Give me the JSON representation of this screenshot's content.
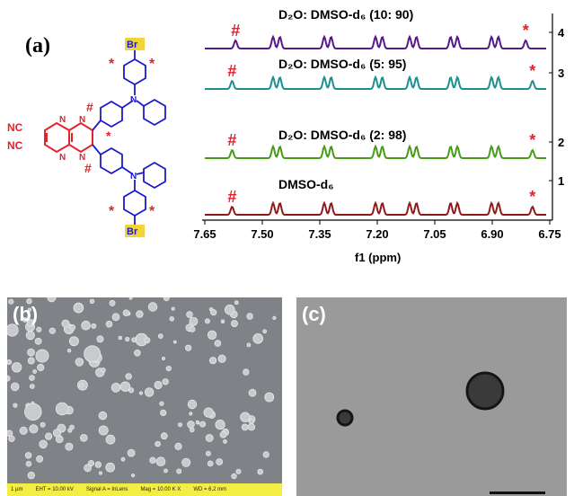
{
  "panel_a": {
    "label": "(a)",
    "molecule": {
      "cn_top": "NC",
      "cn_bottom": "NC",
      "br_top": "Br",
      "br_bottom": "Br",
      "n_atom": "N",
      "hash": "#",
      "star": "*",
      "colors": {
        "core": "#e8202a",
        "arm": "#1a1acc",
        "br_box": "#f2d43a"
      }
    },
    "spectra": [
      {
        "solvent": "D₂O: DMSO-d₆ (10: 90)",
        "index": "4",
        "color": "#55198a"
      },
      {
        "solvent": "D₂O: DMSO-d₆ (5: 95)",
        "index": "3",
        "color": "#1e8f8f"
      },
      {
        "solvent": "D₂O: DMSO-d₆ (2: 98)",
        "index": "2",
        "color": "#4a9a1a"
      },
      {
        "solvent": "DMSO-d₆",
        "index": "1",
        "color": "#8f1a1a"
      }
    ],
    "x_ticks": [
      "7.65",
      "7.50",
      "7.35",
      "7.20",
      "7.05",
      "6.90",
      "6.75"
    ],
    "x_label": "f1 (ppm)",
    "marker_hash": "#",
    "marker_star": "*",
    "marker_color": "#e8202a"
  },
  "panel_b": {
    "label": "(b)",
    "infobar": {
      "scale": "1 µm",
      "eht": "EHT = 10.00 kV",
      "signal": "Signal A = InLens",
      "mag": "Mag = 10.00 K X",
      "wd": "WD = 6.2 mm"
    }
  },
  "panel_c": {
    "label": "(c)"
  }
}
